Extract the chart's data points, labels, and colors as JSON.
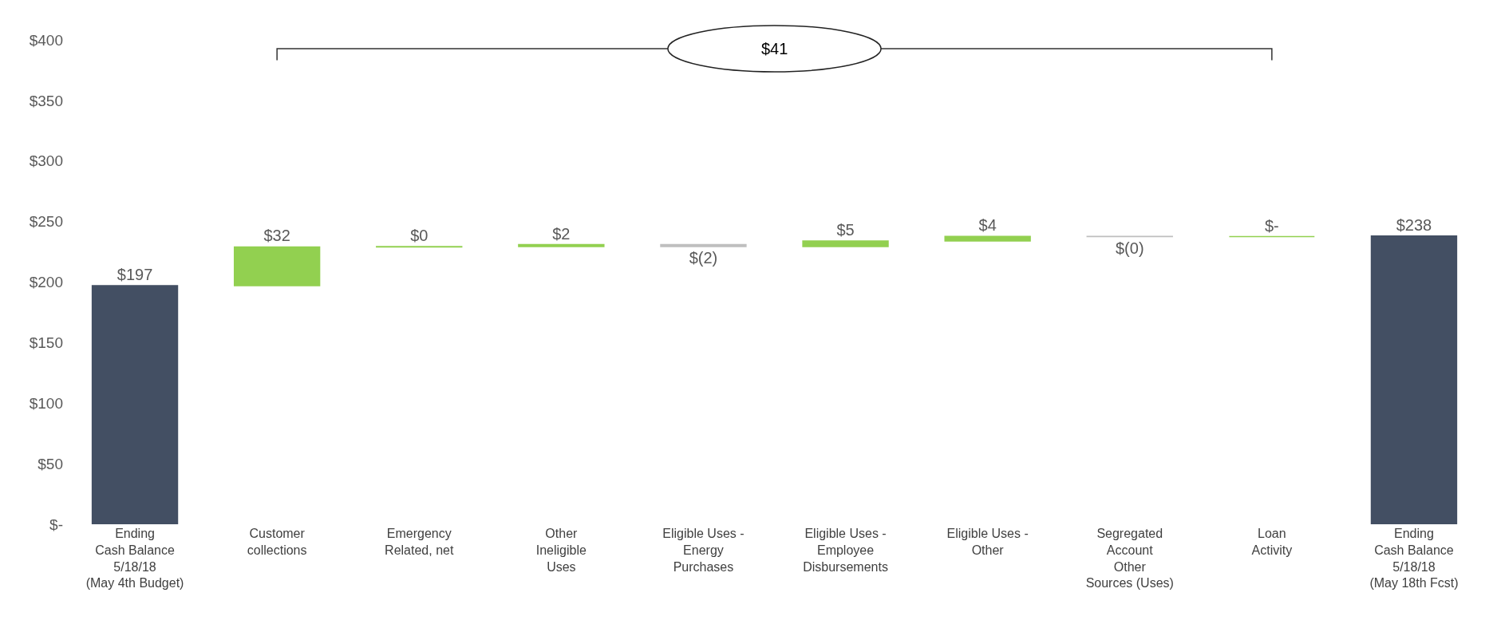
{
  "chart_data": {
    "type": "bar",
    "categories": [
      "Ending\nCash Balance\n5/18/18\n(May 4th Budget)",
      "Customer\ncollections",
      "Emergency\nRelated, net",
      "Other\nIneligible\nUses",
      "Eligible Uses -\nEnergy\nPurchases",
      "Eligible Uses -\nEmployee\nDisbursements",
      "Eligible Uses -\nOther",
      "Segregated\nAccount\nOther\nSources (Uses)",
      "Loan\nActivity",
      "Ending\nCash Balance\n5/18/18\n(May 18th Fcst)"
    ],
    "values": [
      197,
      32,
      0.4,
      1.5,
      -1.5,
      4.6,
      3.8,
      -0.3,
      0,
      238
    ],
    "base": [
      0,
      197,
      229,
      229.4,
      230.9,
      229.4,
      234,
      237.8,
      237.5,
      0
    ],
    "colors": [
      "#434f63",
      "#92d050",
      "#92d050",
      "#92d050",
      "#bfbfbf",
      "#92d050",
      "#92d050",
      "#bfbfbf",
      "#92d050",
      "#434f63"
    ],
    "value_labels": [
      "$197",
      "$32",
      "$0",
      "$2",
      "$(2)",
      "$5",
      "$4",
      "$(0)",
      "$-",
      "$238"
    ],
    "ylim": [
      0,
      400
    ],
    "yticks": [
      {
        "value": 0,
        "label": "$-"
      },
      {
        "value": 50,
        "label": "$50"
      },
      {
        "value": 100,
        "label": "$100"
      },
      {
        "value": 150,
        "label": "$150"
      },
      {
        "value": 200,
        "label": "$200"
      },
      {
        "value": 250,
        "label": "$250"
      },
      {
        "value": 300,
        "label": "$300"
      },
      {
        "value": 350,
        "label": "$350"
      },
      {
        "value": 400,
        "label": "$400"
      }
    ],
    "grid": false,
    "annotations": [
      "$41"
    ]
  }
}
